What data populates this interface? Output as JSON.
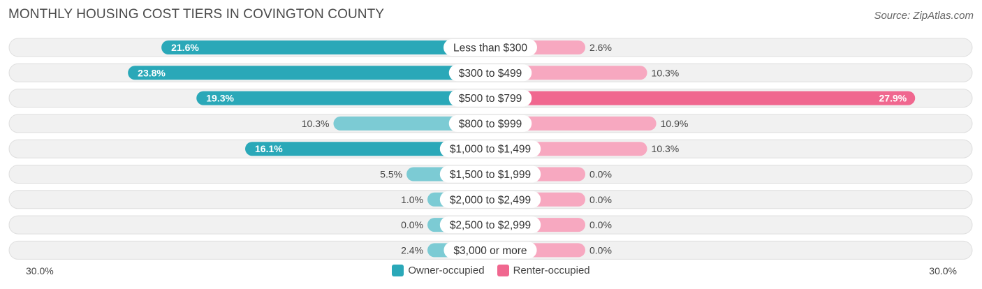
{
  "title": "MONTHLY HOUSING COST TIERS IN COVINGTON COUNTY",
  "source": "Source: ZipAtlas.com",
  "colors": {
    "owner": "#2aa8b8",
    "owner_light": "#7ccbd4",
    "renter": "#f0678f",
    "renter_light": "#f7a8c0",
    "row_bg": "#f1f1f1",
    "row_border": "#dedede"
  },
  "chart_data": {
    "type": "bar",
    "orientation": "diverging-horizontal",
    "categories": [
      "Less than $300",
      "$300 to $499",
      "$500 to $799",
      "$800 to $999",
      "$1,000 to $1,499",
      "$1,500 to $1,999",
      "$2,000 to $2,499",
      "$2,500 to $2,999",
      "$3,000 or more"
    ],
    "series": [
      {
        "name": "Owner-occupied",
        "values": [
          21.6,
          23.8,
          19.3,
          10.3,
          16.1,
          5.5,
          1.0,
          0.0,
          2.4
        ],
        "labels": [
          "21.6%",
          "23.8%",
          "19.3%",
          "10.3%",
          "16.1%",
          "5.5%",
          "1.0%",
          "0.0%",
          "2.4%"
        ]
      },
      {
        "name": "Renter-occupied",
        "values": [
          2.6,
          10.3,
          27.9,
          10.9,
          10.3,
          0.0,
          0.0,
          0.0,
          0.0
        ],
        "labels": [
          "2.6%",
          "10.3%",
          "27.9%",
          "10.9%",
          "10.3%",
          "0.0%",
          "0.0%",
          "0.0%",
          "0.0%"
        ]
      }
    ],
    "xlim": [
      -30,
      30
    ],
    "axis_labels": {
      "left": "30.0%",
      "right": "30.0%"
    },
    "legend_position": "bottom-center"
  }
}
